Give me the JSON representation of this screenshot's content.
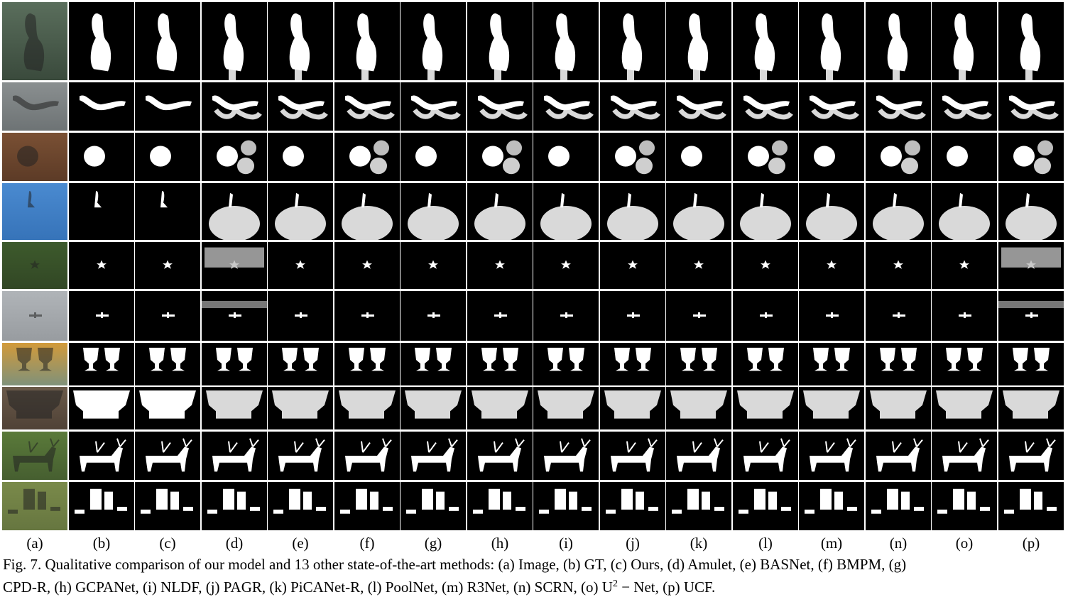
{
  "column_labels": [
    "(a)",
    "(b)",
    "(c)",
    "(d)",
    "(e)",
    "(f)",
    "(g)",
    "(h)",
    "(i)",
    "(j)",
    "(k)",
    "(l)",
    "(m)",
    "(n)",
    "(o)",
    "(p)"
  ],
  "rows": [
    {
      "subject": "swan",
      "photo_colors": [
        "#5a6e5c",
        "#3a4a3c"
      ],
      "shape": "swan"
    },
    {
      "subject": "heron",
      "photo_colors": [
        "#8a8f90",
        "#5c6264"
      ],
      "shape": "heron"
    },
    {
      "subject": "coin",
      "photo_colors": [
        "#7a5034",
        "#4a2e1e"
      ],
      "shape": "coin"
    },
    {
      "subject": "nest",
      "photo_colors": [
        "#4a8ad0",
        "#2f6bb0"
      ],
      "shape": "nest"
    },
    {
      "subject": "star",
      "photo_colors": [
        "#3d5a2c",
        "#2a3a20"
      ],
      "shape": "star"
    },
    {
      "subject": "plane",
      "photo_colors": [
        "#b0b4b8",
        "#8a8e92"
      ],
      "shape": "plane"
    },
    {
      "subject": "glasses",
      "photo_colors": [
        "#d29a3a",
        "#3a8ab0"
      ],
      "shape": "glasses"
    },
    {
      "subject": "wineglasses",
      "photo_colors": [
        "#6a5a4a",
        "#3a2e26"
      ],
      "shape": "wine"
    },
    {
      "subject": "deer",
      "photo_colors": [
        "#5a7a3a",
        "#3a4e2a"
      ],
      "shape": "deer"
    },
    {
      "subject": "chairs",
      "photo_colors": [
        "#7a8a4a",
        "#5a6a3a"
      ],
      "shape": "chairs"
    }
  ],
  "caption": {
    "line1": "Fig. 7. Qualitative comparison of our model and 13 other state-of-the-art methods: (a) Image, (b) GT, (c) Ours, (d) Amulet, (e) BASNet, (f) BMPM, (g)",
    "line2_a": "CPD-R, (h) GCPANet, (i) NLDF, (j) PAGR, (k) PiCANet-R, (l) PoolNet, (m) R3Net, (n) SCRN, (o)",
    "line2_u": "U",
    "line2_sup": "2",
    "line2_b": " − Net, (p) UCF."
  }
}
